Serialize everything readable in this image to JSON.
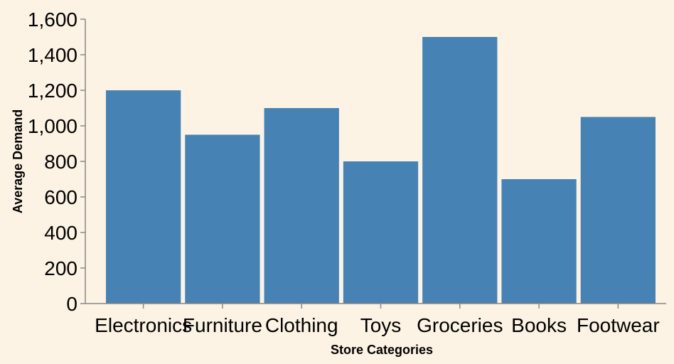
{
  "chart_data": {
    "type": "bar",
    "title": "",
    "xlabel": "Store Categories",
    "ylabel": "Average Demand",
    "categories": [
      "Electronics",
      "Furniture",
      "Clothing",
      "Toys",
      "Groceries",
      "Books",
      "Footwear"
    ],
    "values": [
      1200,
      950,
      1100,
      800,
      1500,
      700,
      1050
    ],
    "ylim": [
      0,
      1600
    ],
    "yticks": [
      "0",
      "200",
      "400",
      "600",
      "800",
      "1,000",
      "1,200",
      "1,400",
      "1,600"
    ],
    "bar_color": "#4682b4",
    "background_color": "#fdf3e4",
    "grid": false,
    "legend": "none"
  }
}
